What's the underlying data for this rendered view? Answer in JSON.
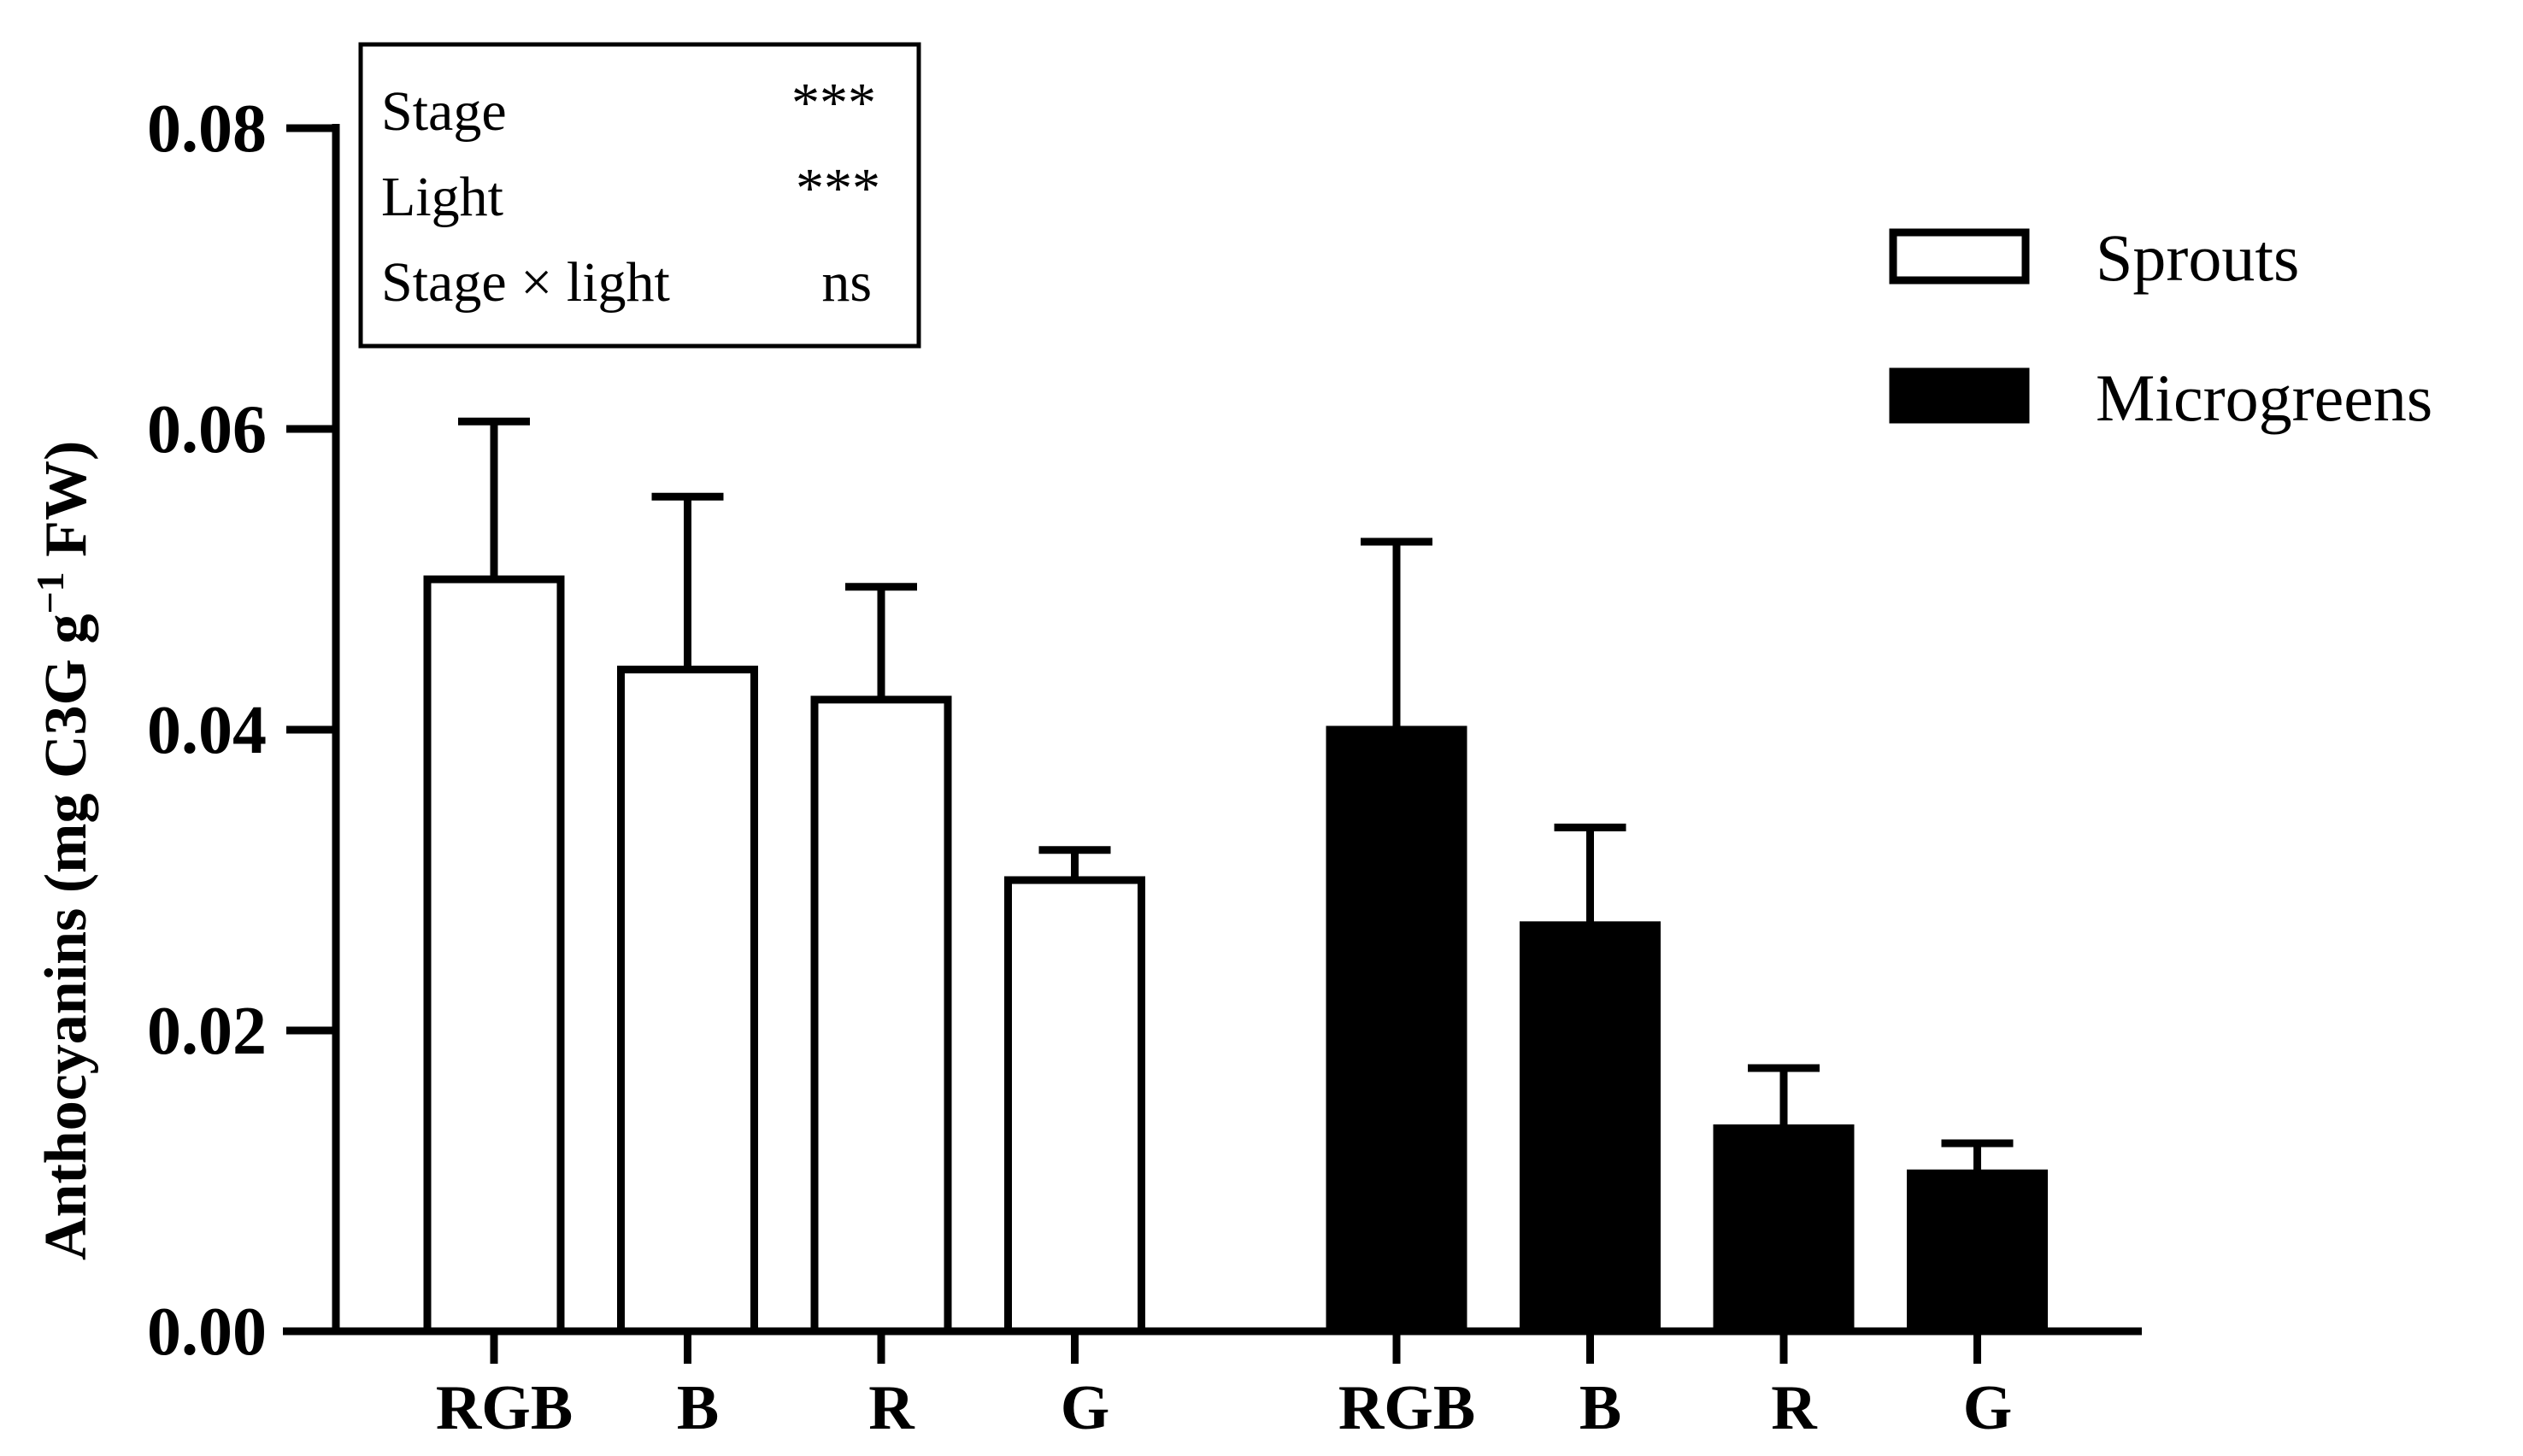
{
  "chart_data": {
    "type": "bar",
    "ylabel": "Anthocyanins (mg C3G g",
    "ylabel_sup": "−1",
    "ylabel_end": " FW)",
    "ylim": [
      0,
      0.08
    ],
    "yticks": [
      "0.00",
      "0.02",
      "0.04",
      "0.06",
      "0.08"
    ],
    "ytick_values": [
      0,
      0.02,
      0.04,
      0.06,
      0.08
    ],
    "groups": [
      {
        "name": "Sprouts",
        "fill": "#ffffff",
        "categories": [
          "RGB",
          "B",
          "R",
          "G"
        ],
        "values": [
          0.05,
          0.044,
          0.042,
          0.03
        ],
        "errors": [
          0.0105,
          0.0115,
          0.0075,
          0.002
        ]
      },
      {
        "name": "Microgreens",
        "fill": "#000000",
        "categories": [
          "RGB",
          "B",
          "R",
          "G"
        ],
        "values": [
          0.04,
          0.027,
          0.0135,
          0.0105
        ],
        "errors": [
          0.0125,
          0.0065,
          0.004,
          0.002
        ]
      }
    ],
    "legend": [
      {
        "name": "Sprouts",
        "fill": "#ffffff"
      },
      {
        "name": "Microgreens",
        "fill": "#000000"
      }
    ],
    "legend_position": "top-right",
    "stats_box": [
      {
        "term": "Stage",
        "sig": "***"
      },
      {
        "term": "Light",
        "sig": "***"
      },
      {
        "term": "Stage × light",
        "sig": "ns"
      }
    ],
    "grid": false
  }
}
